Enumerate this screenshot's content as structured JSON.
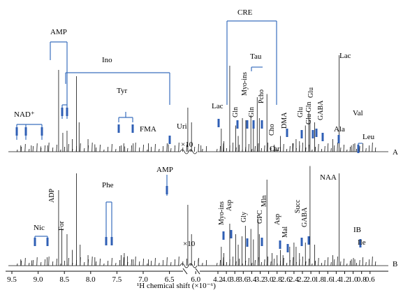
{
  "chart_data": {
    "type": "nmr_spectrum",
    "xlabel": "¹H chemical shift (×10⁻⁶)",
    "x_ticks": [
      9.5,
      9.0,
      8.5,
      8.0,
      7.5,
      7.0,
      6.5,
      6.0,
      4.2,
      4.0,
      3.8,
      3.6,
      3.4,
      3.2,
      3.0,
      2.8,
      2.6,
      2.4,
      2.2,
      2.0,
      1.8,
      1.6,
      1.4,
      1.2,
      1.0,
      0.8,
      0.6
    ],
    "x_tick_labels": [
      "9.5",
      "9.0",
      "8.5",
      "8.0",
      "7.5",
      "7.0",
      "6.5",
      "6.0",
      "4.2",
      "4.0",
      "3.8",
      "3.6",
      "3.4",
      "3.2",
      "3.0",
      "2.8",
      "2.6",
      "2.4",
      "2.2",
      "2.0",
      "1.8",
      "1.6",
      "1.4",
      "1.2",
      "1.0",
      "0.8",
      "0.6"
    ],
    "axis_break": {
      "from": 5.8,
      "to": 4.3
    },
    "scale_note": "×10",
    "panels": [
      {
        "name": "A",
        "label": "A",
        "peaks": [
          {
            "x": 9.33,
            "h": 0.06
          },
          {
            "x": 9.13,
            "h": 0.06
          },
          {
            "x": 8.95,
            "h": 0.05
          },
          {
            "x": 8.82,
            "h": 0.06
          },
          {
            "x": 8.61,
            "h": 0.78
          },
          {
            "x": 8.53,
            "h": 0.18
          },
          {
            "x": 8.45,
            "h": 0.2
          },
          {
            "x": 8.35,
            "h": 0.12
          },
          {
            "x": 8.27,
            "h": 0.72
          },
          {
            "x": 8.22,
            "h": 0.28
          },
          {
            "x": 8.05,
            "h": 0.12
          },
          {
            "x": 7.92,
            "h": 0.07
          },
          {
            "x": 7.42,
            "h": 0.06
          },
          {
            "x": 7.35,
            "h": 0.05
          },
          {
            "x": 7.19,
            "h": 0.08
          },
          {
            "x": 6.9,
            "h": 0.08
          },
          {
            "x": 6.52,
            "h": 0.07
          },
          {
            "x": 6.15,
            "h": 0.42
          },
          {
            "x": 6.08,
            "h": 0.28
          },
          {
            "x": 5.9,
            "h": 0.06
          },
          {
            "x": 4.12,
            "h": 0.22
          },
          {
            "x": 4.06,
            "h": 0.1
          },
          {
            "x": 3.92,
            "h": 0.82
          },
          {
            "x": 3.78,
            "h": 0.25
          },
          {
            "x": 3.72,
            "h": 0.15
          },
          {
            "x": 3.62,
            "h": 0.32
          },
          {
            "x": 3.54,
            "h": 0.3
          },
          {
            "x": 3.42,
            "h": 0.35
          },
          {
            "x": 3.36,
            "h": 0.28
          },
          {
            "x": 3.27,
            "h": 0.52
          },
          {
            "x": 3.22,
            "h": 0.32
          },
          {
            "x": 3.04,
            "h": 0.55
          },
          {
            "x": 2.85,
            "h": 0.05
          },
          {
            "x": 2.72,
            "h": 0.15
          },
          {
            "x": 2.43,
            "h": 0.08
          },
          {
            "x": 2.35,
            "h": 0.12
          },
          {
            "x": 2.27,
            "h": 0.1
          },
          {
            "x": 2.13,
            "h": 0.25
          },
          {
            "x": 2.05,
            "h": 0.38
          },
          {
            "x": 2.02,
            "h": 0.3
          },
          {
            "x": 1.91,
            "h": 0.28
          },
          {
            "x": 1.48,
            "h": 0.12
          },
          {
            "x": 1.33,
            "h": 0.92
          },
          {
            "x": 1.04,
            "h": 0.06
          },
          {
            "x": 0.96,
            "h": 0.08
          }
        ],
        "annotations": [
          {
            "text": "NAD⁺",
            "x": 9.2
          },
          {
            "text": "AMP",
            "x": 8.45
          },
          {
            "text": "Ino",
            "x": 7.2
          },
          {
            "text": "Tyr",
            "x": 7.05
          },
          {
            "text": "FMA",
            "x": 6.55
          },
          {
            "text": "Uri",
            "x": 5.9
          },
          {
            "text": "CRE",
            "x": 3.5
          },
          {
            "text": "Lac",
            "x": 4.12
          },
          {
            "text": "Gln",
            "x": 3.78
          },
          {
            "text": "Myo-ins",
            "x": 3.6
          },
          {
            "text": "Gln",
            "x": 3.42
          },
          {
            "text": "Tau",
            "x": 3.3
          },
          {
            "text": "Pcho",
            "x": 3.2
          },
          {
            "text": "Cho",
            "x": 3.02
          },
          {
            "text": "Car",
            "x": 2.95
          },
          {
            "text": "DMA",
            "x": 2.72
          },
          {
            "text": "Glu",
            "x": 2.35
          },
          {
            "text": "Glu Gln",
            "x": 2.12
          },
          {
            "text": "Glu",
            "x": 2.03
          },
          {
            "text": "GABA",
            "x": 1.92
          },
          {
            "text": "Ala",
            "x": 1.47
          },
          {
            "text": "Lac",
            "x": 1.33
          },
          {
            "text": "Val",
            "x": 1.0
          },
          {
            "text": "Leu",
            "x": 0.95
          }
        ]
      },
      {
        "name": "B",
        "label": "B",
        "peaks": [
          {
            "x": 9.33,
            "h": 0.06
          },
          {
            "x": 9.12,
            "h": 0.05
          },
          {
            "x": 8.83,
            "h": 0.08
          },
          {
            "x": 8.61,
            "h": 0.72
          },
          {
            "x": 8.55,
            "h": 0.35
          },
          {
            "x": 8.45,
            "h": 0.3
          },
          {
            "x": 8.35,
            "h": 0.15
          },
          {
            "x": 8.27,
            "h": 0.88
          },
          {
            "x": 8.2,
            "h": 0.2
          },
          {
            "x": 8.05,
            "h": 0.1
          },
          {
            "x": 7.92,
            "h": 0.08
          },
          {
            "x": 7.42,
            "h": 0.1
          },
          {
            "x": 7.36,
            "h": 0.12
          },
          {
            "x": 7.3,
            "h": 0.09
          },
          {
            "x": 7.19,
            "h": 0.06
          },
          {
            "x": 6.9,
            "h": 0.06
          },
          {
            "x": 6.15,
            "h": 0.58
          },
          {
            "x": 6.08,
            "h": 0.3
          },
          {
            "x": 5.95,
            "h": 0.06
          },
          {
            "x": 4.12,
            "h": 0.18
          },
          {
            "x": 4.06,
            "h": 0.12
          },
          {
            "x": 3.92,
            "h": 0.4
          },
          {
            "x": 3.78,
            "h": 0.3
          },
          {
            "x": 3.72,
            "h": 0.2
          },
          {
            "x": 3.63,
            "h": 0.28
          },
          {
            "x": 3.55,
            "h": 0.38
          },
          {
            "x": 3.42,
            "h": 0.35
          },
          {
            "x": 3.36,
            "h": 0.25
          },
          {
            "x": 3.25,
            "h": 0.45
          },
          {
            "x": 3.22,
            "h": 0.3
          },
          {
            "x": 3.04,
            "h": 0.82
          },
          {
            "x": 2.92,
            "h": 0.12
          },
          {
            "x": 2.8,
            "h": 0.1
          },
          {
            "x": 2.72,
            "h": 0.15
          },
          {
            "x": 2.66,
            "h": 0.1
          },
          {
            "x": 2.5,
            "h": 0.18
          },
          {
            "x": 2.4,
            "h": 0.22
          },
          {
            "x": 2.35,
            "h": 0.18
          },
          {
            "x": 2.27,
            "h": 0.12
          },
          {
            "x": 2.13,
            "h": 0.22
          },
          {
            "x": 2.02,
            "h": 0.95
          },
          {
            "x": 1.91,
            "h": 0.2
          },
          {
            "x": 1.48,
            "h": 0.1
          },
          {
            "x": 1.33,
            "h": 0.88
          },
          {
            "x": 1.04,
            "h": 0.06
          },
          {
            "x": 0.96,
            "h": 0.06
          }
        ],
        "annotations": [
          {
            "text": "Nic",
            "x": 8.95
          },
          {
            "text": "ADP",
            "x": 8.55
          },
          {
            "text": "For",
            "x": 8.45
          },
          {
            "text": "Phe",
            "x": 7.36
          },
          {
            "text": "AMP",
            "x": 6.15
          },
          {
            "text": "Myo-ins",
            "x": 4.06
          },
          {
            "text": "Asp",
            "x": 3.9
          },
          {
            "text": "Gly",
            "x": 3.56
          },
          {
            "text": "GPC",
            "x": 3.23
          },
          {
            "text": "Mln",
            "x": 3.15
          },
          {
            "text": "Asp",
            "x": 2.82
          },
          {
            "text": "Mal",
            "x": 2.68
          },
          {
            "text": "Succ",
            "x": 2.4
          },
          {
            "text": "GABA",
            "x": 2.29
          },
          {
            "text": "NAA",
            "x": 2.02
          },
          {
            "text": "IB",
            "x": 1.05
          },
          {
            "text": "Ile",
            "x": 0.98
          }
        ]
      }
    ]
  }
}
